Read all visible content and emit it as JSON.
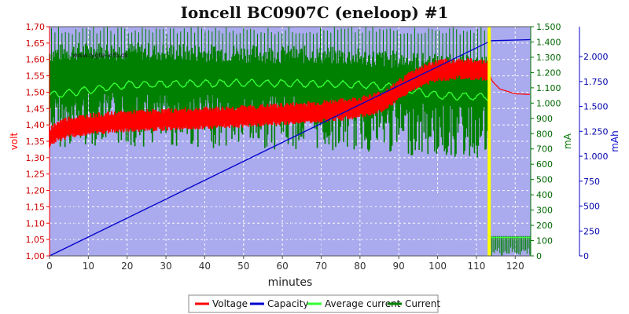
{
  "chart_data": {
    "type": "line",
    "title": "Ioncell BC0907C (eneloop) #1",
    "xlabel": "minutes",
    "xlim": [
      0,
      124
    ],
    "x_ticks": [
      "0",
      "10",
      "20",
      "30",
      "40",
      "50",
      "60",
      "70",
      "80",
      "90",
      "100",
      "110",
      "120"
    ],
    "watermark": "www.lygte-info.dk",
    "axes": {
      "volt": {
        "label": "volt",
        "lim": [
          1.0,
          1.7
        ],
        "color": "#ff0000",
        "ticks": [
          "1,00",
          "1,05",
          "1,10",
          "1,15",
          "1,20",
          "1,25",
          "1,30",
          "1,35",
          "1,40",
          "1,45",
          "1,50",
          "1,55",
          "1,60",
          "1,65",
          "1,70"
        ]
      },
      "mA": {
        "label": "mA",
        "lim": [
          0,
          1500
        ],
        "color": "#007700",
        "ticks": [
          "0",
          "100",
          "200",
          "300",
          "400",
          "500",
          "600",
          "700",
          "800",
          "900",
          "1.000",
          "1.100",
          "1.200",
          "1.300",
          "1.400",
          "1.500"
        ]
      },
      "mAh": {
        "label": "mAh",
        "lim": [
          0,
          2300
        ],
        "color": "#0000cc",
        "ticks": [
          "0",
          "250",
          "500",
          "750",
          "1.000",
          "1.250",
          "1.500",
          "1.750",
          "2.000"
        ]
      }
    },
    "background_color": "#aaaaee",
    "grid": true,
    "legend_position": "bottom",
    "series": [
      {
        "name": "Voltage",
        "color": "#ff0000",
        "axis": "volt",
        "x": [
          0,
          2,
          5,
          10,
          20,
          30,
          40,
          50,
          60,
          70,
          75,
          80,
          85,
          88,
          90,
          93,
          96,
          100,
          105,
          110,
          112,
          113,
          113.5,
          114,
          116,
          120,
          124
        ],
        "y": [
          1.36,
          1.38,
          1.392,
          1.4,
          1.41,
          1.415,
          1.42,
          1.425,
          1.432,
          1.44,
          1.445,
          1.452,
          1.468,
          1.485,
          1.505,
          1.53,
          1.55,
          1.565,
          1.57,
          1.568,
          1.565,
          1.56,
          1.55,
          1.535,
          1.51,
          1.495,
          1.493
        ],
        "band": 0.03
      },
      {
        "name": "Capacity",
        "color": "#0000cc",
        "axis": "mAh",
        "x": [
          0,
          113,
          114,
          124
        ],
        "y": [
          0,
          2145,
          2160,
          2170
        ]
      },
      {
        "name": "Average current",
        "color": "#33ff33",
        "axis": "mA",
        "x": [
          0,
          20,
          40,
          60,
          80,
          90,
          100,
          112,
          113.3,
          113.4,
          124
        ],
        "y": [
          1050,
          1120,
          1130,
          1130,
          1120,
          1100,
          1050,
          1040,
          1040,
          120,
          120
        ]
      },
      {
        "name": "Current",
        "color": "#008000",
        "axis": "mA",
        "x": [
          0,
          10,
          30,
          50,
          70,
          90,
          100,
          110,
          113.3,
          113.4,
          124
        ],
        "y": [
          1300,
          1320,
          1310,
          1300,
          1290,
          1260,
          1240,
          1230,
          1230,
          120,
          120
        ]
      }
    ]
  }
}
